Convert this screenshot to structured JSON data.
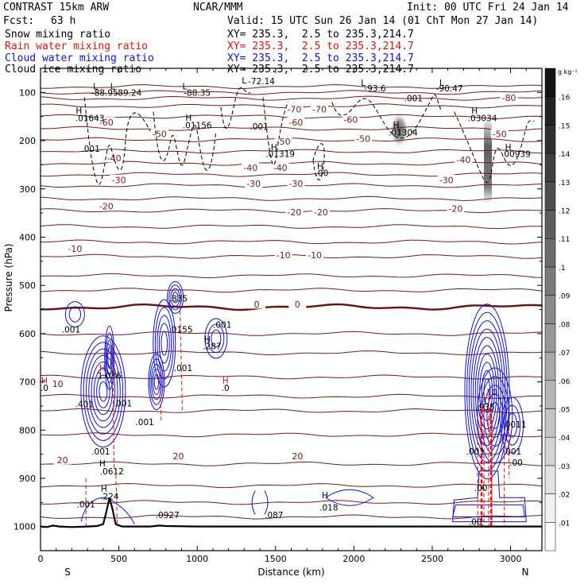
{
  "header": {
    "model": "CONTRAST 15km ARW",
    "center": "NCAR/MMM",
    "init": "Init: 00 UTC Fri 24 Jan 14",
    "fcst_label": "Fcst:",
    "fcst_value": "63 h",
    "valid": "Valid: 15 UTC Sun 26 Jan 14 (01 ChT Mon 27 Jan 14)"
  },
  "fields": [
    {
      "name": "Snow mixing ratio",
      "xy": "XY= 235.3,  2.5 to 235.3,214.7",
      "color": "#000000"
    },
    {
      "name": "Rain water mixing ratio",
      "xy": "XY= 235.3,  2.5 to 235.3,214.7",
      "color": "#dd1111"
    },
    {
      "name": "Cloud water mixing ratio",
      "xy": "XY= 235.3,  2.5 to 235.3,214.7",
      "color": "#1111cc"
    },
    {
      "name": "Cloud ice mixing ratio",
      "xy": "XY= 235.3,  2.5 to 235.3,214.7",
      "color": "#000000"
    }
  ],
  "chart_data": {
    "type": "cross-section contour",
    "title": "Snow, rain water, cloud water, cloud ice mixing ratio cross-section",
    "xlabel": "Distance (km)",
    "ylabel": "Pressure (hPa)",
    "xlim": [
      0,
      3200
    ],
    "ylim": [
      1050,
      50
    ],
    "xticks": [
      "0",
      "500",
      "1000",
      "1500",
      "2000",
      "2500",
      "3000"
    ],
    "yticks": [
      "100",
      "200",
      "300",
      "400",
      "500",
      "600",
      "700",
      "800",
      "900",
      "1000"
    ],
    "x_end_labels": {
      "left": "S",
      "right": "N"
    },
    "colorbar": {
      "unit": "g kg⁻¹",
      "levels": [
        ".01",
        ".02",
        ".03",
        ".04",
        ".05",
        ".06",
        ".07",
        ".08",
        ".09",
        ".1",
        ".11",
        ".12",
        ".13",
        ".14",
        ".15",
        ".16"
      ]
    },
    "temperature_contours_C": [
      "20",
      "10",
      "0",
      "-10",
      "-20",
      "-30",
      "-40",
      "-50",
      "-60",
      "-70",
      "-80"
    ],
    "annotations": [
      {
        "text": "L",
        "x": 350,
        "p": 87
      },
      {
        "text": "-88.95",
        "x": 410,
        "p": 100
      },
      {
        "text": "L",
        "x": 460,
        "p": 87
      },
      {
        "text": "-89.24",
        "x": 560,
        "p": 100
      },
      {
        "text": "L",
        "x": 920,
        "p": 87
      },
      {
        "text": "-88.35",
        "x": 1000,
        "p": 100
      },
      {
        "text": "L",
        "x": 1300,
        "p": 75
      },
      {
        "text": "-72.14",
        "x": 1410,
        "p": 76
      },
      {
        "text": "L",
        "x": 2060,
        "p": 80
      },
      {
        "text": "-93.6",
        "x": 2135,
        "p": 91
      },
      {
        "text": "L",
        "x": 2560,
        "p": 80
      },
      {
        "text": "-90.47",
        "x": 2610,
        "p": 91
      },
      {
        "text": "H",
        "x": 245,
        "p": 137
      },
      {
        "text": ".01643",
        "x": 315,
        "p": 153
      },
      {
        "text": "H",
        "x": 945,
        "p": 152
      },
      {
        "text": ".01156",
        "x": 1000,
        "p": 168
      },
      {
        "text": ".001",
        "x": 1395,
        "p": 170
      },
      {
        "text": ".001",
        "x": 2380,
        "p": 112
      },
      {
        "text": "H",
        "x": 2270,
        "p": 167
      },
      {
        "text": ".01304",
        "x": 2315,
        "p": 183
      },
      {
        "text": "H",
        "x": 2770,
        "p": 137
      },
      {
        "text": ".03034",
        "x": 2820,
        "p": 153
      },
      {
        "text": "H",
        "x": 1490,
        "p": 213
      },
      {
        "text": ".01319",
        "x": 1530,
        "p": 227
      },
      {
        "text": "H",
        "x": 1785,
        "p": 253
      },
      {
        "text": ".00",
        "x": 1795,
        "p": 267
      },
      {
        "text": "H",
        "x": 2985,
        "p": 213
      },
      {
        "text": ".00939",
        "x": 3035,
        "p": 227
      },
      {
        "text": ".001",
        "x": 320,
        "p": 216
      },
      {
        "text": ".835",
        "x": 880,
        "p": 527
      },
      {
        "text": ".001",
        "x": 1160,
        "p": 581
      },
      {
        "text": ".001",
        "x": 195,
        "p": 591
      },
      {
        "text": ".0155",
        "x": 895,
        "p": 591
      },
      {
        "text": "H",
        "x": 1065,
        "p": 612
      },
      {
        "text": ".287",
        "x": 1095,
        "p": 626
      },
      {
        "text": "H",
        "x": 395,
        "p": 671
      },
      {
        "text": "1.036",
        "x": 440,
        "p": 687
      },
      {
        "text": ".001",
        "x": 910,
        "p": 671
      },
      {
        "text": "H",
        "x": 25,
        "p": 697
      },
      {
        "text": ".0",
        "x": 25,
        "p": 712
      },
      {
        "text": "H",
        "x": 1180,
        "p": 697
      },
      {
        "text": ".0",
        "x": 1180,
        "p": 712
      },
      {
        "text": ".401",
        "x": 280,
        "p": 746
      },
      {
        "text": ".001",
        "x": 525,
        "p": 744
      },
      {
        "text": ".001",
        "x": 665,
        "p": 783
      },
      {
        "text": ".001",
        "x": 385,
        "p": 844
      },
      {
        "text": ".0612",
        "x": 455,
        "p": 885
      },
      {
        "text": "H",
        "x": 395,
        "p": 869
      },
      {
        "text": ".001",
        "x": 290,
        "p": 954
      },
      {
        "text": "H",
        "x": 405,
        "p": 921
      },
      {
        "text": ".224",
        "x": 440,
        "p": 937
      },
      {
        "text": ".0927",
        "x": 810,
        "p": 976
      },
      {
        "text": ".087",
        "x": 1490,
        "p": 976
      },
      {
        "text": "H",
        "x": 1815,
        "p": 935
      },
      {
        "text": ".018",
        "x": 1840,
        "p": 960
      },
      {
        "text": ".935",
        "x": 2840,
        "p": 752
      },
      {
        "text": ".0011",
        "x": 3025,
        "p": 788
      },
      {
        "text": ".001",
        "x": 2775,
        "p": 844
      },
      {
        "text": ".001",
        "x": 3010,
        "p": 844
      },
      {
        "text": ".00",
        "x": 3035,
        "p": 867
      },
      {
        "text": ".00",
        "x": 2775,
        "p": 990
      },
      {
        "text": ".00",
        "x": 2810,
        "p": 920
      }
    ]
  }
}
